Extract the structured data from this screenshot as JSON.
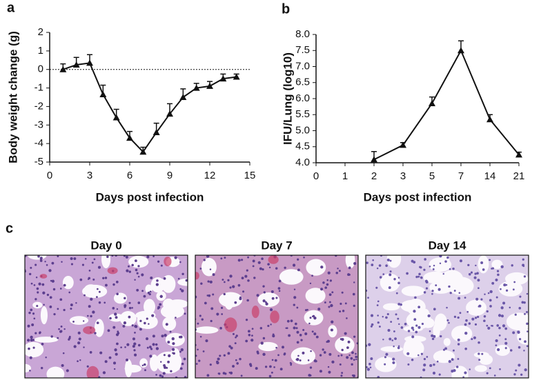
{
  "chart_data": [
    {
      "type": "line",
      "label": "a",
      "x_label": "Days post infection",
      "y_label": "Body weight change (g)",
      "x": [
        1,
        2,
        3,
        4,
        5,
        6,
        7,
        8,
        9,
        10,
        11,
        12,
        13,
        14
      ],
      "series": [
        {
          "color": "#111111",
          "values": [
            0.0,
            0.25,
            0.35,
            -1.35,
            -2.6,
            -3.7,
            -4.45,
            -3.4,
            -2.4,
            -1.5,
            -1.0,
            -0.9,
            -0.5,
            -0.4
          ],
          "errors": [
            0.3,
            0.4,
            0.45,
            0.5,
            0.45,
            0.35,
            0.25,
            0.5,
            0.55,
            0.45,
            0.25,
            0.25,
            0.25,
            0.15
          ]
        }
      ],
      "xlim": [
        0,
        15
      ],
      "xticks": [
        0,
        3,
        6,
        9,
        12,
        15
      ],
      "ylim": [
        -5,
        2
      ],
      "yticks": [
        -5,
        -4,
        -3,
        -2,
        -1,
        0,
        1,
        2
      ],
      "reference_line": 0
    },
    {
      "type": "line",
      "label": "b",
      "x_label": "Days post infection",
      "y_label": "IFU/Lung (log10)",
      "categories": [
        "0",
        "1",
        "2",
        "3",
        "5",
        "7",
        "14",
        "21"
      ],
      "series": [
        {
          "color": "#111111",
          "values": [
            null,
            null,
            4.1,
            4.55,
            5.85,
            7.5,
            5.35,
            4.25
          ],
          "errors": [
            null,
            null,
            0.25,
            0.08,
            0.2,
            0.3,
            0.15,
            0.08
          ]
        }
      ],
      "ylim": [
        4,
        8
      ],
      "yticks": [
        {
          "value": 4,
          "label": "4.0"
        },
        4.5,
        {
          "value": 5,
          "label": "5.0"
        },
        5.5,
        {
          "value": 6,
          "label": "6.0"
        },
        6.5,
        {
          "value": 7,
          "label": "7.0"
        },
        7.5,
        {
          "value": 8,
          "label": "8.0"
        }
      ]
    }
  ],
  "panel_c": {
    "label": "c",
    "images": [
      {
        "title": "Day 0"
      },
      {
        "title": "Day 7"
      },
      {
        "title": "Day 14"
      }
    ]
  }
}
